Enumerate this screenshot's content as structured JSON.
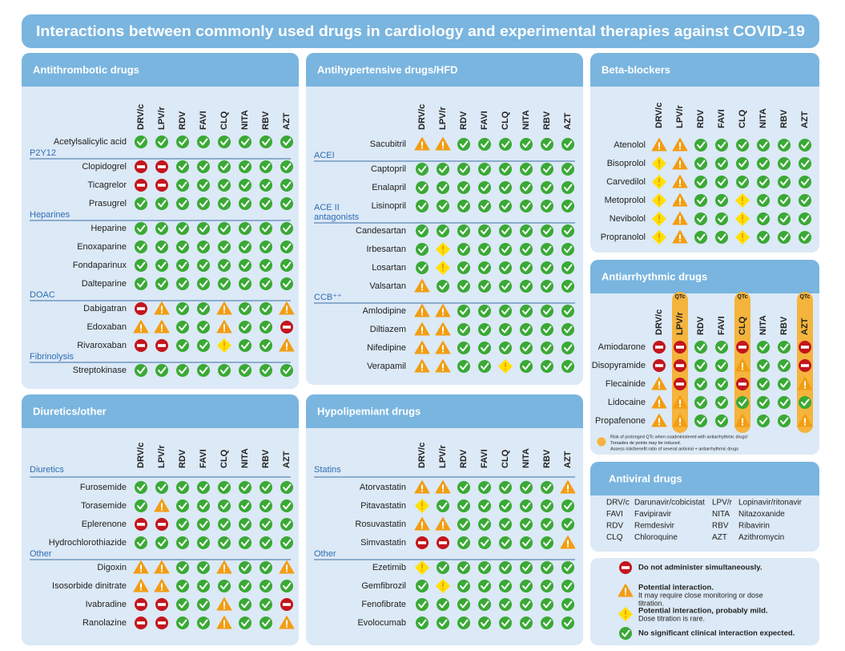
{
  "title": "Interactions between commonly used drugs in cardiology and experimental therapies against COVID-19",
  "columns": [
    "DRV/c",
    "LPV/r",
    "RDV",
    "FAVI",
    "CLQ",
    "NITA",
    "RBV",
    "AZT"
  ],
  "panels": [
    {
      "title": "Antithrombotic drugs",
      "groups": [
        {
          "rows": [
            {
              "drug": "Acetylsalicylic acid",
              "interactions": [
                "g",
                "g",
                "g",
                "g",
                "g",
                "g",
                "g",
                "g"
              ]
            }
          ]
        },
        {
          "heading": [
            "P2Y12"
          ],
          "rows": [
            {
              "drug": "Clopidogrel",
              "interactions": [
                "r",
                "r",
                "g",
                "g",
                "g",
                "g",
                "g",
                "g"
              ]
            },
            {
              "drug": "Ticagrelor",
              "interactions": [
                "r",
                "r",
                "g",
                "g",
                "g",
                "g",
                "g",
                "g"
              ]
            },
            {
              "drug": "Prasugrel",
              "interactions": [
                "g",
                "g",
                "g",
                "g",
                "g",
                "g",
                "g",
                "g"
              ]
            }
          ]
        },
        {
          "heading": [
            "Heparines"
          ],
          "rows": [
            {
              "drug": "Heparine",
              "interactions": [
                "g",
                "g",
                "g",
                "g",
                "g",
                "g",
                "g",
                "g"
              ]
            },
            {
              "drug": "Enoxaparine",
              "interactions": [
                "g",
                "g",
                "g",
                "g",
                "g",
                "g",
                "g",
                "g"
              ]
            },
            {
              "drug": "Fondaparinux",
              "interactions": [
                "g",
                "g",
                "g",
                "g",
                "g",
                "g",
                "g",
                "g"
              ]
            },
            {
              "drug": "Dalteparine",
              "interactions": [
                "g",
                "g",
                "g",
                "g",
                "g",
                "g",
                "g",
                "g"
              ]
            }
          ]
        },
        {
          "heading": [
            "DOAC"
          ],
          "rows": [
            {
              "drug": "Dabigatran",
              "interactions": [
                "r",
                "o",
                "g",
                "g",
                "o",
                "g",
                "g",
                "o"
              ]
            },
            {
              "drug": "Edoxaban",
              "interactions": [
                "o",
                "o",
                "g",
                "g",
                "o",
                "g",
                "g",
                "r"
              ]
            },
            {
              "drug": "Rivaroxaban",
              "interactions": [
                "r",
                "r",
                "g",
                "g",
                "y",
                "g",
                "g",
                "o"
              ]
            }
          ]
        },
        {
          "heading": [
            "Fibrinolysis"
          ],
          "rows": [
            {
              "drug": "Streptokinase",
              "interactions": [
                "g",
                "g",
                "g",
                "g",
                "g",
                "g",
                "g",
                "g"
              ]
            }
          ]
        }
      ]
    },
    {
      "title": "Antihypertensive drugs/HFD",
      "groups": [
        {
          "rows": [
            {
              "drug": "Sacubitril",
              "interactions": [
                "o",
                "o",
                "g",
                "g",
                "g",
                "g",
                "g",
                "g"
              ]
            }
          ]
        },
        {
          "heading": [
            "ACEI"
          ],
          "rows": [
            {
              "drug": "Captopril",
              "interactions": [
                "g",
                "g",
                "g",
                "g",
                "g",
                "g",
                "g",
                "g"
              ]
            },
            {
              "drug": "Enalapril",
              "interactions": [
                "g",
                "g",
                "g",
                "g",
                "g",
                "g",
                "g",
                "g"
              ]
            },
            {
              "drug": "Lisinopril",
              "interactions": [
                "g",
                "g",
                "g",
                "g",
                "g",
                "g",
                "g",
                "g"
              ]
            }
          ]
        },
        {
          "heading": [
            "ACE II",
            "antagonists"
          ],
          "rows": [
            {
              "drug": "Candesartan",
              "interactions": [
                "g",
                "g",
                "g",
                "g",
                "g",
                "g",
                "g",
                "g"
              ]
            },
            {
              "drug": "Irbesartan",
              "interactions": [
                "g",
                "y",
                "g",
                "g",
                "g",
                "g",
                "g",
                "g"
              ]
            },
            {
              "drug": "Losartan",
              "interactions": [
                "g",
                "y",
                "g",
                "g",
                "g",
                "g",
                "g",
                "g"
              ]
            },
            {
              "drug": "Valsartan",
              "interactions": [
                "o",
                "g",
                "g",
                "g",
                "g",
                "g",
                "g",
                "g"
              ]
            }
          ]
        },
        {
          "heading": [
            "CCB⁺⁺"
          ],
          "rows": [
            {
              "drug": "Amlodipine",
              "interactions": [
                "o",
                "o",
                "g",
                "g",
                "g",
                "g",
                "g",
                "g"
              ]
            },
            {
              "drug": "Diltiazem",
              "interactions": [
                "o",
                "o",
                "g",
                "g",
                "g",
                "g",
                "g",
                "g"
              ]
            },
            {
              "drug": "Nifedipine",
              "interactions": [
                "o",
                "o",
                "g",
                "g",
                "g",
                "g",
                "g",
                "g"
              ]
            },
            {
              "drug": "Verapamil",
              "interactions": [
                "o",
                "o",
                "g",
                "g",
                "y",
                "g",
                "g",
                "g"
              ]
            }
          ]
        }
      ]
    },
    {
      "title": "Beta-blockers",
      "groups": [
        {
          "rows": [
            {
              "drug": "Atenolol",
              "interactions": [
                "o",
                "o",
                "g",
                "g",
                "g",
                "g",
                "g",
                "g"
              ]
            },
            {
              "drug": "Bisoprolol",
              "interactions": [
                "y",
                "o",
                "g",
                "g",
                "g",
                "g",
                "g",
                "g"
              ]
            },
            {
              "drug": "Carvedilol",
              "interactions": [
                "y",
                "o",
                "g",
                "g",
                "g",
                "g",
                "g",
                "g"
              ]
            },
            {
              "drug": "Metoprolol",
              "interactions": [
                "y",
                "o",
                "g",
                "g",
                "y",
                "g",
                "g",
                "g"
              ]
            },
            {
              "drug": "Nevibolol",
              "interactions": [
                "y",
                "o",
                "g",
                "g",
                "y",
                "g",
                "g",
                "g"
              ]
            },
            {
              "drug": "Propranolol",
              "interactions": [
                "y",
                "o",
                "g",
                "g",
                "y",
                "g",
                "g",
                "g"
              ]
            }
          ]
        }
      ]
    },
    {
      "title": "Antiarrhythmic drugs",
      "qtc_label": "QTc",
      "qtc_columns": [
        1,
        4,
        7
      ],
      "qtc_note": [
        "Risk of prolonged QTc when coadministered with antiarrhythmic drugs!",
        "Torsades de points may be induced.",
        "Assess risk/benefit ratio of several antiviral + antiarrhythmic drugs"
      ],
      "groups": [
        {
          "rows": [
            {
              "drug": "Amiodarone",
              "interactions": [
                "r",
                "r",
                "g",
                "g",
                "r",
                "g",
                "g",
                "r"
              ]
            },
            {
              "drug": "Disopyramide",
              "interactions": [
                "r",
                "r",
                "g",
                "g",
                "o",
                "g",
                "g",
                "r"
              ]
            },
            {
              "drug": "Flecainide",
              "interactions": [
                "o",
                "r",
                "g",
                "g",
                "r",
                "g",
                "g",
                "o"
              ]
            },
            {
              "drug": "Lidocaine",
              "interactions": [
                "o",
                "o",
                "g",
                "g",
                "g",
                "g",
                "g",
                "g"
              ]
            },
            {
              "drug": "Propafenone",
              "interactions": [
                "o",
                "o",
                "g",
                "g",
                "o",
                "g",
                "g",
                "o"
              ]
            }
          ]
        }
      ]
    },
    {
      "title": "Diuretics/other",
      "groups": [
        {
          "heading": [
            "Diuretics"
          ],
          "rows": [
            {
              "drug": "Furosemide",
              "interactions": [
                "g",
                "g",
                "g",
                "g",
                "g",
                "g",
                "g",
                "g"
              ]
            },
            {
              "drug": "Torasemide",
              "interactions": [
                "g",
                "o",
                "g",
                "g",
                "g",
                "g",
                "g",
                "g"
              ]
            },
            {
              "drug": "Eplerenone",
              "interactions": [
                "r",
                "r",
                "g",
                "g",
                "g",
                "g",
                "g",
                "g"
              ]
            },
            {
              "drug": "Hydrochlorothiazide",
              "interactions": [
                "g",
                "g",
                "g",
                "g",
                "g",
                "g",
                "g",
                "g"
              ]
            }
          ]
        },
        {
          "heading": [
            "Other"
          ],
          "rows": [
            {
              "drug": "Digoxin",
              "interactions": [
                "o",
                "o",
                "g",
                "g",
                "o",
                "g",
                "g",
                "o"
              ]
            },
            {
              "drug": "Isosorbide dinitrate",
              "interactions": [
                "o",
                "o",
                "g",
                "g",
                "g",
                "g",
                "g",
                "g"
              ]
            },
            {
              "drug": "Ivabradine",
              "interactions": [
                "r",
                "r",
                "g",
                "g",
                "o",
                "g",
                "g",
                "r"
              ]
            },
            {
              "drug": "Ranolazine",
              "interactions": [
                "r",
                "r",
                "g",
                "g",
                "o",
                "g",
                "g",
                "o"
              ]
            }
          ]
        }
      ]
    },
    {
      "title": "Hypolipemiant drugs",
      "groups": [
        {
          "heading": [
            "Statins"
          ],
          "rows": [
            {
              "drug": "Atorvastatin",
              "interactions": [
                "o",
                "o",
                "g",
                "g",
                "g",
                "g",
                "g",
                "o"
              ]
            },
            {
              "drug": "Pitavastatin",
              "interactions": [
                "y",
                "g",
                "g",
                "g",
                "g",
                "g",
                "g",
                "g"
              ]
            },
            {
              "drug": "Rosuvastatin",
              "interactions": [
                "o",
                "o",
                "g",
                "g",
                "g",
                "g",
                "g",
                "g"
              ]
            },
            {
              "drug": "Simvastatin",
              "interactions": [
                "r",
                "r",
                "g",
                "g",
                "g",
                "g",
                "g",
                "o"
              ]
            }
          ]
        },
        {
          "heading": [
            "Other"
          ],
          "rows": [
            {
              "drug": "Ezetimib",
              "interactions": [
                "y",
                "g",
                "g",
                "g",
                "g",
                "g",
                "g",
                "g"
              ]
            },
            {
              "drug": "Gemfibrozil",
              "interactions": [
                "g",
                "y",
                "g",
                "g",
                "g",
                "g",
                "g",
                "g"
              ]
            },
            {
              "drug": "Fenofibrate",
              "interactions": [
                "g",
                "g",
                "g",
                "g",
                "g",
                "g",
                "g",
                "g"
              ]
            },
            {
              "drug": "Evolocumab",
              "interactions": [
                "g",
                "g",
                "g",
                "g",
                "g",
                "g",
                "g",
                "g"
              ]
            }
          ]
        }
      ]
    }
  ],
  "antiviral_key": {
    "title": "Antiviral drugs",
    "entries": [
      {
        "abbr": "DRV/c",
        "name": "Darunavir/cobicistat"
      },
      {
        "abbr": "FAVI",
        "name": "Favipiravir"
      },
      {
        "abbr": "RDV",
        "name": "Remdesivir"
      },
      {
        "abbr": "CLQ",
        "name": "Chloroquine"
      },
      {
        "abbr": "LPV/r",
        "name": "Lopinavir/ritonavir"
      },
      {
        "abbr": "NITA",
        "name": "Nitazoxanide"
      },
      {
        "abbr": "RBV",
        "name": "Ribavirin"
      },
      {
        "abbr": "AZT",
        "name": "Azithromycin"
      }
    ]
  },
  "legend": [
    {
      "symbol": "r",
      "label": "Do not administer simultaneously."
    },
    {
      "symbol": "o",
      "label": "Potential interaction.",
      "detail": [
        "It may require close monitoring or dose",
        "titration."
      ]
    },
    {
      "symbol": "y",
      "label": "Potential interaction, probably mild.",
      "detail": [
        "Dose titration is rare."
      ]
    },
    {
      "symbol": "g",
      "label": "No significant clinical interaction expected."
    }
  ]
}
